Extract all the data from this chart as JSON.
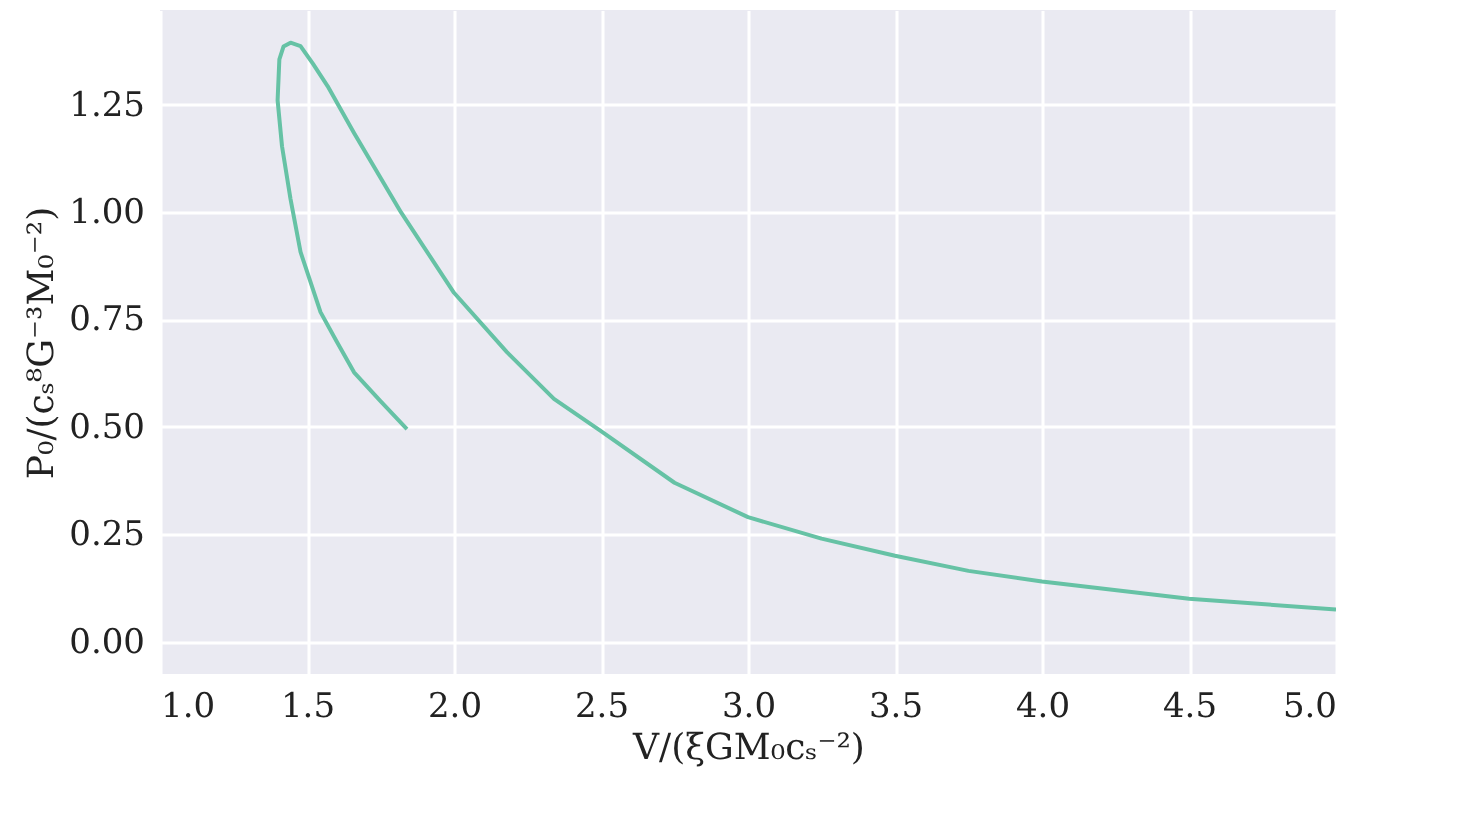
{
  "chart_data": {
    "type": "line",
    "xlabel": "V/(ξGM₀cₛ⁻²)",
    "ylabel": "P₀/(cₛ⁸G⁻³M₀⁻²)",
    "series": [
      {
        "color": "#66c2a5",
        "x": [
          1.84,
          1.75,
          1.66,
          1.6,
          1.546,
          1.478,
          1.444,
          1.415,
          1.4,
          1.406,
          1.42,
          1.444,
          1.478,
          1.52,
          1.57,
          1.66,
          1.82,
          2.0,
          2.18,
          2.34,
          2.5,
          2.75,
          3.0,
          3.25,
          3.5,
          3.75,
          4.0,
          4.5,
          5.0
        ],
        "values": [
          0.495,
          0.56,
          0.627,
          0.7,
          0.767,
          0.907,
          1.03,
          1.153,
          1.26,
          1.355,
          1.385,
          1.394,
          1.386,
          1.345,
          1.293,
          1.184,
          0.999,
          0.812,
          0.674,
          0.565,
          0.49,
          0.37,
          0.29,
          0.24,
          0.2,
          0.165,
          0.14,
          0.1,
          0.075
        ]
      }
    ],
    "xlim": [
      1.0,
      5.0
    ],
    "xticks": [
      {
        "value": 1,
        "label": "1.0"
      },
      1.5,
      {
        "value": 2,
        "label": "2.0"
      },
      2.5,
      {
        "value": 3,
        "label": "3.0"
      },
      3.5,
      {
        "value": 4,
        "label": "4.0"
      },
      4.5,
      {
        "value": 5,
        "label": "5.0"
      }
    ],
    "ylim": [
      -0.075,
      1.47
    ],
    "yticks": [
      {
        "value": 0,
        "label": "0.00"
      },
      0.25,
      {
        "value": 0.5,
        "label": "0.50"
      },
      0.75,
      {
        "value": 1,
        "label": "1.00"
      },
      1.25
    ],
    "grid": true,
    "legend": false,
    "marker": "none",
    "line_style": "solid"
  }
}
